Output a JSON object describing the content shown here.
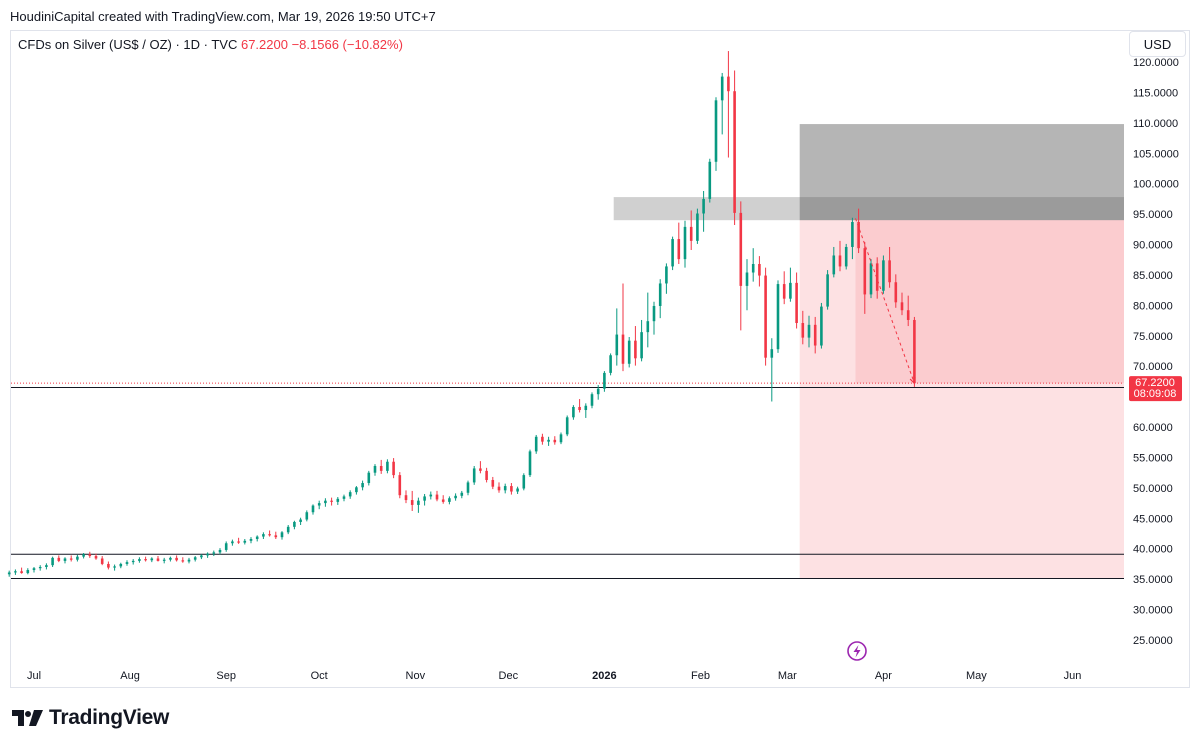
{
  "header": {
    "credit": "HoudiniCapital created with TradingView.com, Mar 19, 2026 19:50 UTC+7"
  },
  "symbol": {
    "name": "CFDs on Silver (US$ / OZ) · 1D · TVC",
    "price": "67.2200",
    "change": "−8.1566 (−10.82%)"
  },
  "currency_button": "USD",
  "price_tag": {
    "price": "67.2200",
    "countdown": "08:09:08"
  },
  "footer": {
    "brand": "TradingView"
  },
  "colors": {
    "up": "#089981",
    "down": "#f23645",
    "text": "#131722"
  },
  "chart_data": {
    "type": "candlestick",
    "title": "CFDs on Silver (US$ / OZ) · 1D · TVC",
    "ylim": [
      22,
      122
    ],
    "y_ticks": [
      "120.0000",
      "115.0000",
      "110.0000",
      "105.0000",
      "100.0000",
      "95.0000",
      "90.0000",
      "85.0000",
      "80.0000",
      "75.0000",
      "70.0000",
      "60.0000",
      "55.0000",
      "50.0000",
      "45.0000",
      "40.0000",
      "35.0000",
      "30.0000",
      "25.0000"
    ],
    "x_ticks": [
      {
        "label": "Jul",
        "day": 0,
        "bold": false
      },
      {
        "label": "Aug",
        "day": 31,
        "bold": false
      },
      {
        "label": "Sep",
        "day": 62,
        "bold": false
      },
      {
        "label": "Oct",
        "day": 92,
        "bold": false
      },
      {
        "label": "Nov",
        "day": 123,
        "bold": false
      },
      {
        "label": "Dec",
        "day": 153,
        "bold": false
      },
      {
        "label": "2026",
        "day": 184,
        "bold": true
      },
      {
        "label": "Feb",
        "day": 215,
        "bold": false
      },
      {
        "label": "Mar",
        "day": 243,
        "bold": false
      },
      {
        "label": "Apr",
        "day": 274,
        "bold": false
      },
      {
        "label": "May",
        "day": 304,
        "bold": false
      },
      {
        "label": "Jun",
        "day": 335,
        "bold": false
      }
    ],
    "candles": [
      {
        "d": -8,
        "o": 35.8,
        "h": 36.4,
        "l": 35.4,
        "c": 36.1
      },
      {
        "d": -6,
        "o": 36.1,
        "h": 36.6,
        "l": 35.7,
        "c": 36.3
      },
      {
        "d": -4,
        "o": 36.3,
        "h": 36.9,
        "l": 35.9,
        "c": 36.0
      },
      {
        "d": -2,
        "o": 36.0,
        "h": 36.8,
        "l": 35.8,
        "c": 36.5
      },
      {
        "d": 0,
        "o": 36.5,
        "h": 37.0,
        "l": 36.1,
        "c": 36.8
      },
      {
        "d": 2,
        "o": 36.8,
        "h": 37.3,
        "l": 36.4,
        "c": 37.0
      },
      {
        "d": 4,
        "o": 37.0,
        "h": 37.6,
        "l": 36.6,
        "c": 37.3
      },
      {
        "d": 6,
        "o": 37.3,
        "h": 38.7,
        "l": 37.0,
        "c": 38.5
      },
      {
        "d": 8,
        "o": 38.5,
        "h": 38.9,
        "l": 37.8,
        "c": 38.0
      },
      {
        "d": 10,
        "o": 38.0,
        "h": 38.6,
        "l": 37.6,
        "c": 38.4
      },
      {
        "d": 12,
        "o": 38.4,
        "h": 38.9,
        "l": 37.9,
        "c": 38.2
      },
      {
        "d": 14,
        "o": 38.2,
        "h": 39.0,
        "l": 37.9,
        "c": 38.7
      },
      {
        "d": 16,
        "o": 38.7,
        "h": 39.3,
        "l": 38.4,
        "c": 39.1
      },
      {
        "d": 18,
        "o": 39.1,
        "h": 39.5,
        "l": 38.5,
        "c": 38.8
      },
      {
        "d": 20,
        "o": 38.8,
        "h": 39.2,
        "l": 38.2,
        "c": 38.4
      },
      {
        "d": 22,
        "o": 38.4,
        "h": 38.8,
        "l": 37.3,
        "c": 37.5
      },
      {
        "d": 24,
        "o": 37.5,
        "h": 37.9,
        "l": 36.6,
        "c": 36.9
      },
      {
        "d": 26,
        "o": 36.9,
        "h": 37.4,
        "l": 36.4,
        "c": 37.1
      },
      {
        "d": 28,
        "o": 37.1,
        "h": 37.7,
        "l": 36.8,
        "c": 37.5
      },
      {
        "d": 30,
        "o": 37.5,
        "h": 38.1,
        "l": 37.2,
        "c": 37.8
      },
      {
        "d": 32,
        "o": 37.8,
        "h": 38.3,
        "l": 37.4,
        "c": 38.0
      },
      {
        "d": 34,
        "o": 38.0,
        "h": 38.6,
        "l": 37.7,
        "c": 38.3
      },
      {
        "d": 36,
        "o": 38.3,
        "h": 38.7,
        "l": 37.9,
        "c": 38.1
      },
      {
        "d": 38,
        "o": 38.1,
        "h": 38.6,
        "l": 37.8,
        "c": 38.4
      },
      {
        "d": 40,
        "o": 38.4,
        "h": 38.8,
        "l": 37.9,
        "c": 38.0
      },
      {
        "d": 42,
        "o": 38.0,
        "h": 38.5,
        "l": 37.6,
        "c": 38.2
      },
      {
        "d": 44,
        "o": 38.2,
        "h": 38.7,
        "l": 37.9,
        "c": 38.5
      },
      {
        "d": 46,
        "o": 38.5,
        "h": 38.9,
        "l": 37.9,
        "c": 38.1
      },
      {
        "d": 48,
        "o": 38.1,
        "h": 38.6,
        "l": 37.7,
        "c": 37.9
      },
      {
        "d": 50,
        "o": 37.9,
        "h": 38.5,
        "l": 37.6,
        "c": 38.2
      },
      {
        "d": 52,
        "o": 38.2,
        "h": 38.8,
        "l": 37.9,
        "c": 38.6
      },
      {
        "d": 54,
        "o": 38.6,
        "h": 39.1,
        "l": 38.3,
        "c": 38.9
      },
      {
        "d": 56,
        "o": 38.9,
        "h": 39.4,
        "l": 38.5,
        "c": 39.2
      },
      {
        "d": 58,
        "o": 39.2,
        "h": 39.7,
        "l": 38.8,
        "c": 39.4
      },
      {
        "d": 60,
        "o": 39.4,
        "h": 40.1,
        "l": 39.1,
        "c": 39.8
      },
      {
        "d": 62,
        "o": 39.8,
        "h": 41.2,
        "l": 39.5,
        "c": 40.9
      },
      {
        "d": 64,
        "o": 40.9,
        "h": 41.5,
        "l": 40.5,
        "c": 41.2
      },
      {
        "d": 66,
        "o": 41.2,
        "h": 41.8,
        "l": 40.8,
        "c": 41.0
      },
      {
        "d": 68,
        "o": 41.0,
        "h": 41.6,
        "l": 40.7,
        "c": 41.3
      },
      {
        "d": 70,
        "o": 41.3,
        "h": 41.9,
        "l": 40.9,
        "c": 41.6
      },
      {
        "d": 72,
        "o": 41.6,
        "h": 42.2,
        "l": 41.2,
        "c": 42.0
      },
      {
        "d": 74,
        "o": 42.0,
        "h": 42.7,
        "l": 41.6,
        "c": 42.4
      },
      {
        "d": 76,
        "o": 42.4,
        "h": 43.0,
        "l": 42.0,
        "c": 42.2
      },
      {
        "d": 78,
        "o": 42.2,
        "h": 42.8,
        "l": 41.6,
        "c": 41.9
      },
      {
        "d": 80,
        "o": 41.9,
        "h": 42.9,
        "l": 41.5,
        "c": 42.7
      },
      {
        "d": 82,
        "o": 42.7,
        "h": 43.9,
        "l": 42.4,
        "c": 43.6
      },
      {
        "d": 84,
        "o": 43.6,
        "h": 44.6,
        "l": 43.2,
        "c": 44.4
      },
      {
        "d": 86,
        "o": 44.4,
        "h": 45.1,
        "l": 43.9,
        "c": 44.8
      },
      {
        "d": 88,
        "o": 44.8,
        "h": 46.3,
        "l": 44.5,
        "c": 46.0
      },
      {
        "d": 90,
        "o": 46.0,
        "h": 47.3,
        "l": 45.6,
        "c": 47.1
      },
      {
        "d": 92,
        "o": 47.1,
        "h": 47.9,
        "l": 46.5,
        "c": 47.5
      },
      {
        "d": 94,
        "o": 47.5,
        "h": 48.3,
        "l": 46.9,
        "c": 47.9
      },
      {
        "d": 96,
        "o": 47.9,
        "h": 48.4,
        "l": 47.1,
        "c": 47.7
      },
      {
        "d": 98,
        "o": 47.7,
        "h": 48.5,
        "l": 47.2,
        "c": 48.2
      },
      {
        "d": 100,
        "o": 48.2,
        "h": 48.9,
        "l": 47.8,
        "c": 48.6
      },
      {
        "d": 102,
        "o": 48.6,
        "h": 49.6,
        "l": 48.2,
        "c": 49.3
      },
      {
        "d": 104,
        "o": 49.3,
        "h": 50.3,
        "l": 48.9,
        "c": 50.1
      },
      {
        "d": 106,
        "o": 50.1,
        "h": 51.2,
        "l": 49.6,
        "c": 50.8
      },
      {
        "d": 108,
        "o": 50.8,
        "h": 52.8,
        "l": 50.4,
        "c": 52.5
      },
      {
        "d": 110,
        "o": 52.5,
        "h": 53.9,
        "l": 52.0,
        "c": 53.6
      },
      {
        "d": 112,
        "o": 53.6,
        "h": 54.6,
        "l": 52.3,
        "c": 52.8
      },
      {
        "d": 114,
        "o": 52.8,
        "h": 54.7,
        "l": 52.4,
        "c": 54.3
      },
      {
        "d": 116,
        "o": 54.3,
        "h": 54.9,
        "l": 51.6,
        "c": 52.1
      },
      {
        "d": 118,
        "o": 52.1,
        "h": 52.6,
        "l": 48.3,
        "c": 48.8
      },
      {
        "d": 120,
        "o": 48.8,
        "h": 49.6,
        "l": 47.5,
        "c": 48.0
      },
      {
        "d": 122,
        "o": 48.0,
        "h": 49.5,
        "l": 46.2,
        "c": 47.2
      },
      {
        "d": 124,
        "o": 47.2,
        "h": 48.4,
        "l": 45.9,
        "c": 47.9
      },
      {
        "d": 126,
        "o": 47.9,
        "h": 49.0,
        "l": 47.1,
        "c": 48.6
      },
      {
        "d": 128,
        "o": 48.6,
        "h": 49.4,
        "l": 48.1,
        "c": 48.9
      },
      {
        "d": 130,
        "o": 48.9,
        "h": 49.5,
        "l": 47.8,
        "c": 48.1
      },
      {
        "d": 132,
        "o": 48.1,
        "h": 48.8,
        "l": 47.4,
        "c": 47.7
      },
      {
        "d": 134,
        "o": 47.7,
        "h": 48.6,
        "l": 47.3,
        "c": 48.3
      },
      {
        "d": 136,
        "o": 48.3,
        "h": 49.1,
        "l": 47.9,
        "c": 48.7
      },
      {
        "d": 138,
        "o": 48.7,
        "h": 49.5,
        "l": 48.3,
        "c": 49.2
      },
      {
        "d": 140,
        "o": 49.2,
        "h": 51.2,
        "l": 48.8,
        "c": 50.9
      },
      {
        "d": 142,
        "o": 50.9,
        "h": 53.6,
        "l": 50.5,
        "c": 53.2
      },
      {
        "d": 144,
        "o": 53.2,
        "h": 54.4,
        "l": 52.4,
        "c": 52.8
      },
      {
        "d": 146,
        "o": 52.8,
        "h": 53.3,
        "l": 50.9,
        "c": 51.3
      },
      {
        "d": 148,
        "o": 51.3,
        "h": 51.8,
        "l": 49.8,
        "c": 50.2
      },
      {
        "d": 150,
        "o": 50.2,
        "h": 50.9,
        "l": 49.2,
        "c": 49.6
      },
      {
        "d": 152,
        "o": 49.6,
        "h": 50.7,
        "l": 49.1,
        "c": 50.3
      },
      {
        "d": 154,
        "o": 50.3,
        "h": 50.8,
        "l": 48.9,
        "c": 49.4
      },
      {
        "d": 156,
        "o": 49.4,
        "h": 50.2,
        "l": 49.0,
        "c": 49.9
      },
      {
        "d": 158,
        "o": 49.9,
        "h": 52.4,
        "l": 49.6,
        "c": 52.1
      },
      {
        "d": 160,
        "o": 52.1,
        "h": 56.3,
        "l": 51.8,
        "c": 56.0
      },
      {
        "d": 162,
        "o": 56.0,
        "h": 58.7,
        "l": 55.6,
        "c": 58.4
      },
      {
        "d": 164,
        "o": 58.4,
        "h": 58.9,
        "l": 57.1,
        "c": 57.6
      },
      {
        "d": 166,
        "o": 57.6,
        "h": 58.4,
        "l": 56.9,
        "c": 57.9
      },
      {
        "d": 168,
        "o": 57.9,
        "h": 58.5,
        "l": 57.1,
        "c": 57.5
      },
      {
        "d": 170,
        "o": 57.5,
        "h": 59.1,
        "l": 57.2,
        "c": 58.8
      },
      {
        "d": 172,
        "o": 58.8,
        "h": 61.9,
        "l": 58.5,
        "c": 61.6
      },
      {
        "d": 174,
        "o": 61.6,
        "h": 63.6,
        "l": 61.2,
        "c": 63.3
      },
      {
        "d": 176,
        "o": 63.3,
        "h": 64.6,
        "l": 62.4,
        "c": 62.8
      },
      {
        "d": 178,
        "o": 62.8,
        "h": 63.9,
        "l": 61.5,
        "c": 63.5
      },
      {
        "d": 180,
        "o": 63.5,
        "h": 65.7,
        "l": 63.1,
        "c": 65.4
      },
      {
        "d": 182,
        "o": 65.4,
        "h": 66.9,
        "l": 64.5,
        "c": 66.3
      },
      {
        "d": 184,
        "o": 66.3,
        "h": 69.2,
        "l": 65.8,
        "c": 68.9
      },
      {
        "d": 186,
        "o": 68.9,
        "h": 72.1,
        "l": 68.5,
        "c": 71.8
      },
      {
        "d": 188,
        "o": 71.8,
        "h": 79.5,
        "l": 70.1,
        "c": 75.2
      },
      {
        "d": 190,
        "o": 75.2,
        "h": 83.6,
        "l": 69.2,
        "c": 70.4
      },
      {
        "d": 192,
        "o": 70.4,
        "h": 74.8,
        "l": 69.8,
        "c": 74.2
      },
      {
        "d": 194,
        "o": 74.2,
        "h": 76.6,
        "l": 70.1,
        "c": 71.3
      },
      {
        "d": 196,
        "o": 71.3,
        "h": 77.6,
        "l": 70.8,
        "c": 75.6
      },
      {
        "d": 198,
        "o": 75.6,
        "h": 82.1,
        "l": 73.1,
        "c": 77.4
      },
      {
        "d": 200,
        "o": 77.4,
        "h": 80.6,
        "l": 75.2,
        "c": 79.9
      },
      {
        "d": 202,
        "o": 79.9,
        "h": 84.3,
        "l": 77.9,
        "c": 83.6
      },
      {
        "d": 204,
        "o": 83.6,
        "h": 86.9,
        "l": 81.9,
        "c": 86.4
      },
      {
        "d": 206,
        "o": 86.4,
        "h": 91.3,
        "l": 85.8,
        "c": 90.9
      },
      {
        "d": 208,
        "o": 90.9,
        "h": 93.6,
        "l": 86.8,
        "c": 87.6
      },
      {
        "d": 210,
        "o": 87.6,
        "h": 93.9,
        "l": 86.2,
        "c": 92.9
      },
      {
        "d": 212,
        "o": 92.9,
        "h": 95.6,
        "l": 89.1,
        "c": 90.6
      },
      {
        "d": 214,
        "o": 90.6,
        "h": 95.9,
        "l": 90.1,
        "c": 95.1
      },
      {
        "d": 216,
        "o": 95.1,
        "h": 98.8,
        "l": 92.1,
        "c": 97.5
      },
      {
        "d": 218,
        "o": 97.5,
        "h": 104.1,
        "l": 96.9,
        "c": 103.6
      },
      {
        "d": 220,
        "o": 103.6,
        "h": 114.2,
        "l": 102.1,
        "c": 113.7
      },
      {
        "d": 222,
        "o": 113.7,
        "h": 118.2,
        "l": 108.1,
        "c": 117.6
      },
      {
        "d": 224,
        "o": 117.6,
        "h": 121.8,
        "l": 104.3,
        "c": 115.2
      },
      {
        "d": 226,
        "o": 115.2,
        "h": 118.6,
        "l": 93.2,
        "c": 95.2
      },
      {
        "d": 228,
        "o": 95.2,
        "h": 97.1,
        "l": 75.9,
        "c": 83.2
      },
      {
        "d": 230,
        "o": 83.2,
        "h": 87.6,
        "l": 79.2,
        "c": 85.4
      },
      {
        "d": 232,
        "o": 85.4,
        "h": 89.4,
        "l": 83.9,
        "c": 86.8
      },
      {
        "d": 234,
        "o": 86.8,
        "h": 88.1,
        "l": 83.1,
        "c": 84.9
      },
      {
        "d": 236,
        "o": 84.9,
        "h": 86.2,
        "l": 70.1,
        "c": 71.4
      },
      {
        "d": 238,
        "o": 71.4,
        "h": 74.6,
        "l": 64.2,
        "c": 72.8
      },
      {
        "d": 240,
        "o": 72.8,
        "h": 84.1,
        "l": 72.2,
        "c": 83.5
      },
      {
        "d": 242,
        "o": 83.5,
        "h": 85.6,
        "l": 80.2,
        "c": 81.1
      },
      {
        "d": 244,
        "o": 81.1,
        "h": 86.2,
        "l": 80.6,
        "c": 83.7
      },
      {
        "d": 246,
        "o": 83.7,
        "h": 85.4,
        "l": 76.2,
        "c": 77.1
      },
      {
        "d": 248,
        "o": 77.1,
        "h": 79.1,
        "l": 73.6,
        "c": 74.7
      },
      {
        "d": 250,
        "o": 74.7,
        "h": 78.3,
        "l": 73.1,
        "c": 76.8
      },
      {
        "d": 252,
        "o": 76.8,
        "h": 78.1,
        "l": 72.1,
        "c": 73.4
      },
      {
        "d": 254,
        "o": 73.4,
        "h": 80.4,
        "l": 72.9,
        "c": 79.8
      },
      {
        "d": 256,
        "o": 79.8,
        "h": 85.8,
        "l": 79.3,
        "c": 85.1
      },
      {
        "d": 258,
        "o": 85.1,
        "h": 89.6,
        "l": 84.6,
        "c": 88.2
      },
      {
        "d": 260,
        "o": 88.2,
        "h": 90.6,
        "l": 85.6,
        "c": 86.4
      },
      {
        "d": 262,
        "o": 86.4,
        "h": 90.1,
        "l": 85.9,
        "c": 89.6
      },
      {
        "d": 264,
        "o": 89.6,
        "h": 94.4,
        "l": 87.6,
        "c": 93.7
      },
      {
        "d": 266,
        "o": 93.7,
        "h": 95.9,
        "l": 88.6,
        "c": 89.4
      },
      {
        "d": 268,
        "o": 89.4,
        "h": 90.4,
        "l": 78.6,
        "c": 81.8
      },
      {
        "d": 270,
        "o": 81.8,
        "h": 87.6,
        "l": 81.2,
        "c": 86.9
      },
      {
        "d": 272,
        "o": 86.9,
        "h": 87.9,
        "l": 81.1,
        "c": 82.4
      },
      {
        "d": 274,
        "o": 82.4,
        "h": 88.2,
        "l": 81.9,
        "c": 87.4
      },
      {
        "d": 276,
        "o": 87.4,
        "h": 89.6,
        "l": 82.9,
        "c": 83.8
      },
      {
        "d": 278,
        "o": 83.8,
        "h": 85.1,
        "l": 79.6,
        "c": 80.5
      },
      {
        "d": 280,
        "o": 80.5,
        "h": 82.1,
        "l": 78.4,
        "c": 79.2
      },
      {
        "d": 282,
        "o": 79.2,
        "h": 81.6,
        "l": 76.6,
        "c": 77.6
      },
      {
        "d": 284,
        "o": 77.6,
        "h": 78.1,
        "l": 66.6,
        "c": 67.2
      }
    ],
    "horizontal_lines": [
      {
        "price": 66.5,
        "style": "solid",
        "color": "#131722"
      },
      {
        "price": 67.22,
        "style": "dotted",
        "color": "#f23645"
      },
      {
        "price": 39.1,
        "style": "solid",
        "color": "#131722"
      },
      {
        "price": 35.1,
        "style": "solid",
        "color": "#131722"
      }
    ],
    "zones": [
      {
        "name": "resistance-zone",
        "top": 97.8,
        "bottom": 94.0,
        "start_day": 187,
        "end_day": 400,
        "color": "rgba(120,120,120,0.35)"
      },
      {
        "name": "stop-zone",
        "top": 109.8,
        "bottom": 94.0,
        "start_day": 247,
        "end_day": 355,
        "color": "rgba(90,90,90,0.45)"
      },
      {
        "name": "target-zone",
        "top": 94.0,
        "bottom": 35.1,
        "start_day": 247,
        "end_day": 355,
        "color": "rgba(242,54,69,0.15)"
      },
      {
        "name": "active-zone",
        "top": 94.0,
        "bottom": 67.2,
        "start_day": 265,
        "end_day": 355,
        "color": "rgba(242,54,69,0.12)"
      }
    ],
    "trend_arrow": {
      "from": {
        "day": 265,
        "price": 94.3
      },
      "to": {
        "day": 284,
        "price": 67.2
      }
    }
  }
}
